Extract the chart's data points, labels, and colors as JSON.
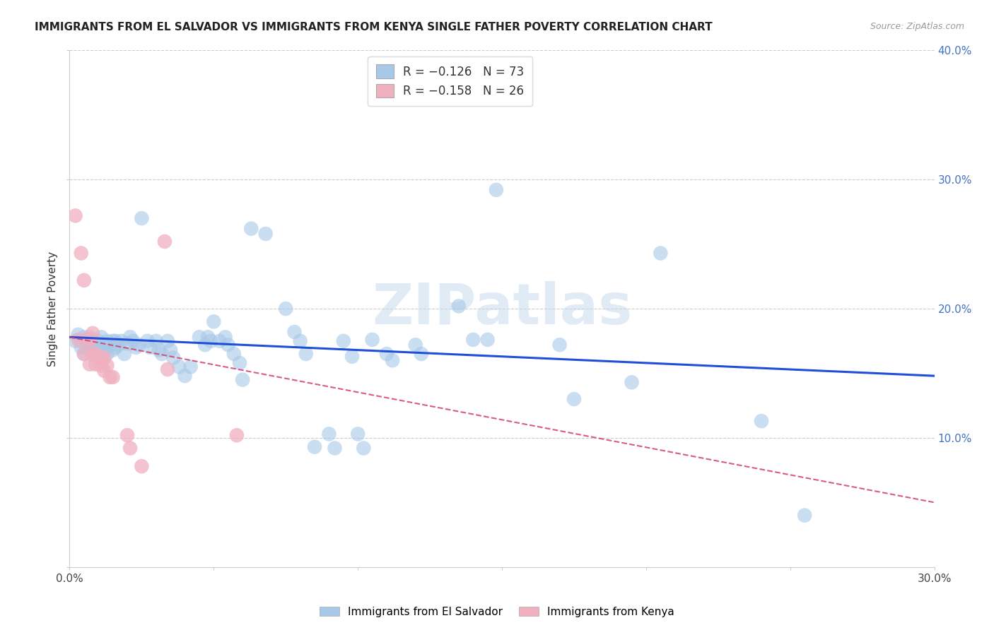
{
  "title": "IMMIGRANTS FROM EL SALVADOR VS IMMIGRANTS FROM KENYA SINGLE FATHER POVERTY CORRELATION CHART",
  "source": "Source: ZipAtlas.com",
  "ylabel": "Single Father Poverty",
  "xlim": [
    0.0,
    0.3
  ],
  "ylim": [
    0.0,
    0.4
  ],
  "xtick_vals": [
    0.0,
    0.05,
    0.1,
    0.15,
    0.2,
    0.25,
    0.3
  ],
  "xtick_labels": [
    "0.0%",
    "",
    "",
    "",
    "",
    "",
    "30.0%"
  ],
  "ytick_vals": [
    0.0,
    0.1,
    0.2,
    0.3,
    0.4
  ],
  "right_ytick_vals": [
    0.1,
    0.2,
    0.3,
    0.4
  ],
  "right_ytick_labels": [
    "10.0%",
    "20.0%",
    "30.0%",
    "40.0%"
  ],
  "watermark": "ZIPatlas",
  "blue_color": "#a8c8e8",
  "pink_color": "#f0b0c0",
  "trendline_blue": "#1f4fd8",
  "trendline_pink": "#d04070",
  "blue_trend_x": [
    0.0,
    0.3
  ],
  "blue_trend_y": [
    0.178,
    0.148
  ],
  "pink_trend_x": [
    0.0,
    0.3
  ],
  "pink_trend_y": [
    0.178,
    0.05
  ],
  "salvador_points": [
    [
      0.002,
      0.175
    ],
    [
      0.003,
      0.18
    ],
    [
      0.004,
      0.17
    ],
    [
      0.004,
      0.175
    ],
    [
      0.005,
      0.178
    ],
    [
      0.005,
      0.165
    ],
    [
      0.006,
      0.175
    ],
    [
      0.006,
      0.17
    ],
    [
      0.007,
      0.178
    ],
    [
      0.007,
      0.172
    ],
    [
      0.008,
      0.175
    ],
    [
      0.008,
      0.168
    ],
    [
      0.009,
      0.173
    ],
    [
      0.01,
      0.175
    ],
    [
      0.01,
      0.17
    ],
    [
      0.011,
      0.178
    ],
    [
      0.012,
      0.172
    ],
    [
      0.012,
      0.168
    ],
    [
      0.013,
      0.175
    ],
    [
      0.013,
      0.165
    ],
    [
      0.014,
      0.172
    ],
    [
      0.015,
      0.175
    ],
    [
      0.015,
      0.168
    ],
    [
      0.016,
      0.175
    ],
    [
      0.016,
      0.17
    ],
    [
      0.017,
      0.172
    ],
    [
      0.018,
      0.175
    ],
    [
      0.019,
      0.165
    ],
    [
      0.02,
      0.173
    ],
    [
      0.021,
      0.178
    ],
    [
      0.022,
      0.175
    ],
    [
      0.023,
      0.17
    ],
    [
      0.024,
      0.172
    ],
    [
      0.025,
      0.27
    ],
    [
      0.027,
      0.175
    ],
    [
      0.028,
      0.17
    ],
    [
      0.03,
      0.175
    ],
    [
      0.031,
      0.168
    ],
    [
      0.032,
      0.165
    ],
    [
      0.034,
      0.175
    ],
    [
      0.035,
      0.168
    ],
    [
      0.036,
      0.162
    ],
    [
      0.038,
      0.155
    ],
    [
      0.04,
      0.148
    ],
    [
      0.042,
      0.155
    ],
    [
      0.045,
      0.178
    ],
    [
      0.047,
      0.172
    ],
    [
      0.048,
      0.178
    ],
    [
      0.049,
      0.175
    ],
    [
      0.05,
      0.19
    ],
    [
      0.052,
      0.175
    ],
    [
      0.054,
      0.178
    ],
    [
      0.055,
      0.172
    ],
    [
      0.057,
      0.165
    ],
    [
      0.059,
      0.158
    ],
    [
      0.06,
      0.145
    ],
    [
      0.063,
      0.262
    ],
    [
      0.068,
      0.258
    ],
    [
      0.075,
      0.2
    ],
    [
      0.078,
      0.182
    ],
    [
      0.08,
      0.175
    ],
    [
      0.082,
      0.165
    ],
    [
      0.085,
      0.093
    ],
    [
      0.09,
      0.103
    ],
    [
      0.092,
      0.092
    ],
    [
      0.095,
      0.175
    ],
    [
      0.098,
      0.163
    ],
    [
      0.1,
      0.103
    ],
    [
      0.102,
      0.092
    ],
    [
      0.105,
      0.176
    ],
    [
      0.11,
      0.165
    ],
    [
      0.112,
      0.16
    ],
    [
      0.12,
      0.172
    ],
    [
      0.122,
      0.165
    ],
    [
      0.135,
      0.202
    ],
    [
      0.14,
      0.176
    ],
    [
      0.145,
      0.176
    ],
    [
      0.148,
      0.292
    ],
    [
      0.17,
      0.172
    ],
    [
      0.175,
      0.13
    ],
    [
      0.195,
      0.143
    ],
    [
      0.205,
      0.243
    ],
    [
      0.24,
      0.113
    ],
    [
      0.255,
      0.04
    ]
  ],
  "kenya_points": [
    [
      0.002,
      0.272
    ],
    [
      0.003,
      0.176
    ],
    [
      0.004,
      0.243
    ],
    [
      0.005,
      0.165
    ],
    [
      0.005,
      0.222
    ],
    [
      0.006,
      0.176
    ],
    [
      0.007,
      0.176
    ],
    [
      0.007,
      0.157
    ],
    [
      0.008,
      0.165
    ],
    [
      0.008,
      0.181
    ],
    [
      0.009,
      0.165
    ],
    [
      0.009,
      0.157
    ],
    [
      0.01,
      0.162
    ],
    [
      0.011,
      0.156
    ],
    [
      0.011,
      0.162
    ],
    [
      0.012,
      0.162
    ],
    [
      0.012,
      0.152
    ],
    [
      0.013,
      0.156
    ],
    [
      0.014,
      0.147
    ],
    [
      0.015,
      0.147
    ],
    [
      0.02,
      0.102
    ],
    [
      0.021,
      0.092
    ],
    [
      0.025,
      0.078
    ],
    [
      0.033,
      0.252
    ],
    [
      0.034,
      0.153
    ],
    [
      0.058,
      0.102
    ]
  ]
}
